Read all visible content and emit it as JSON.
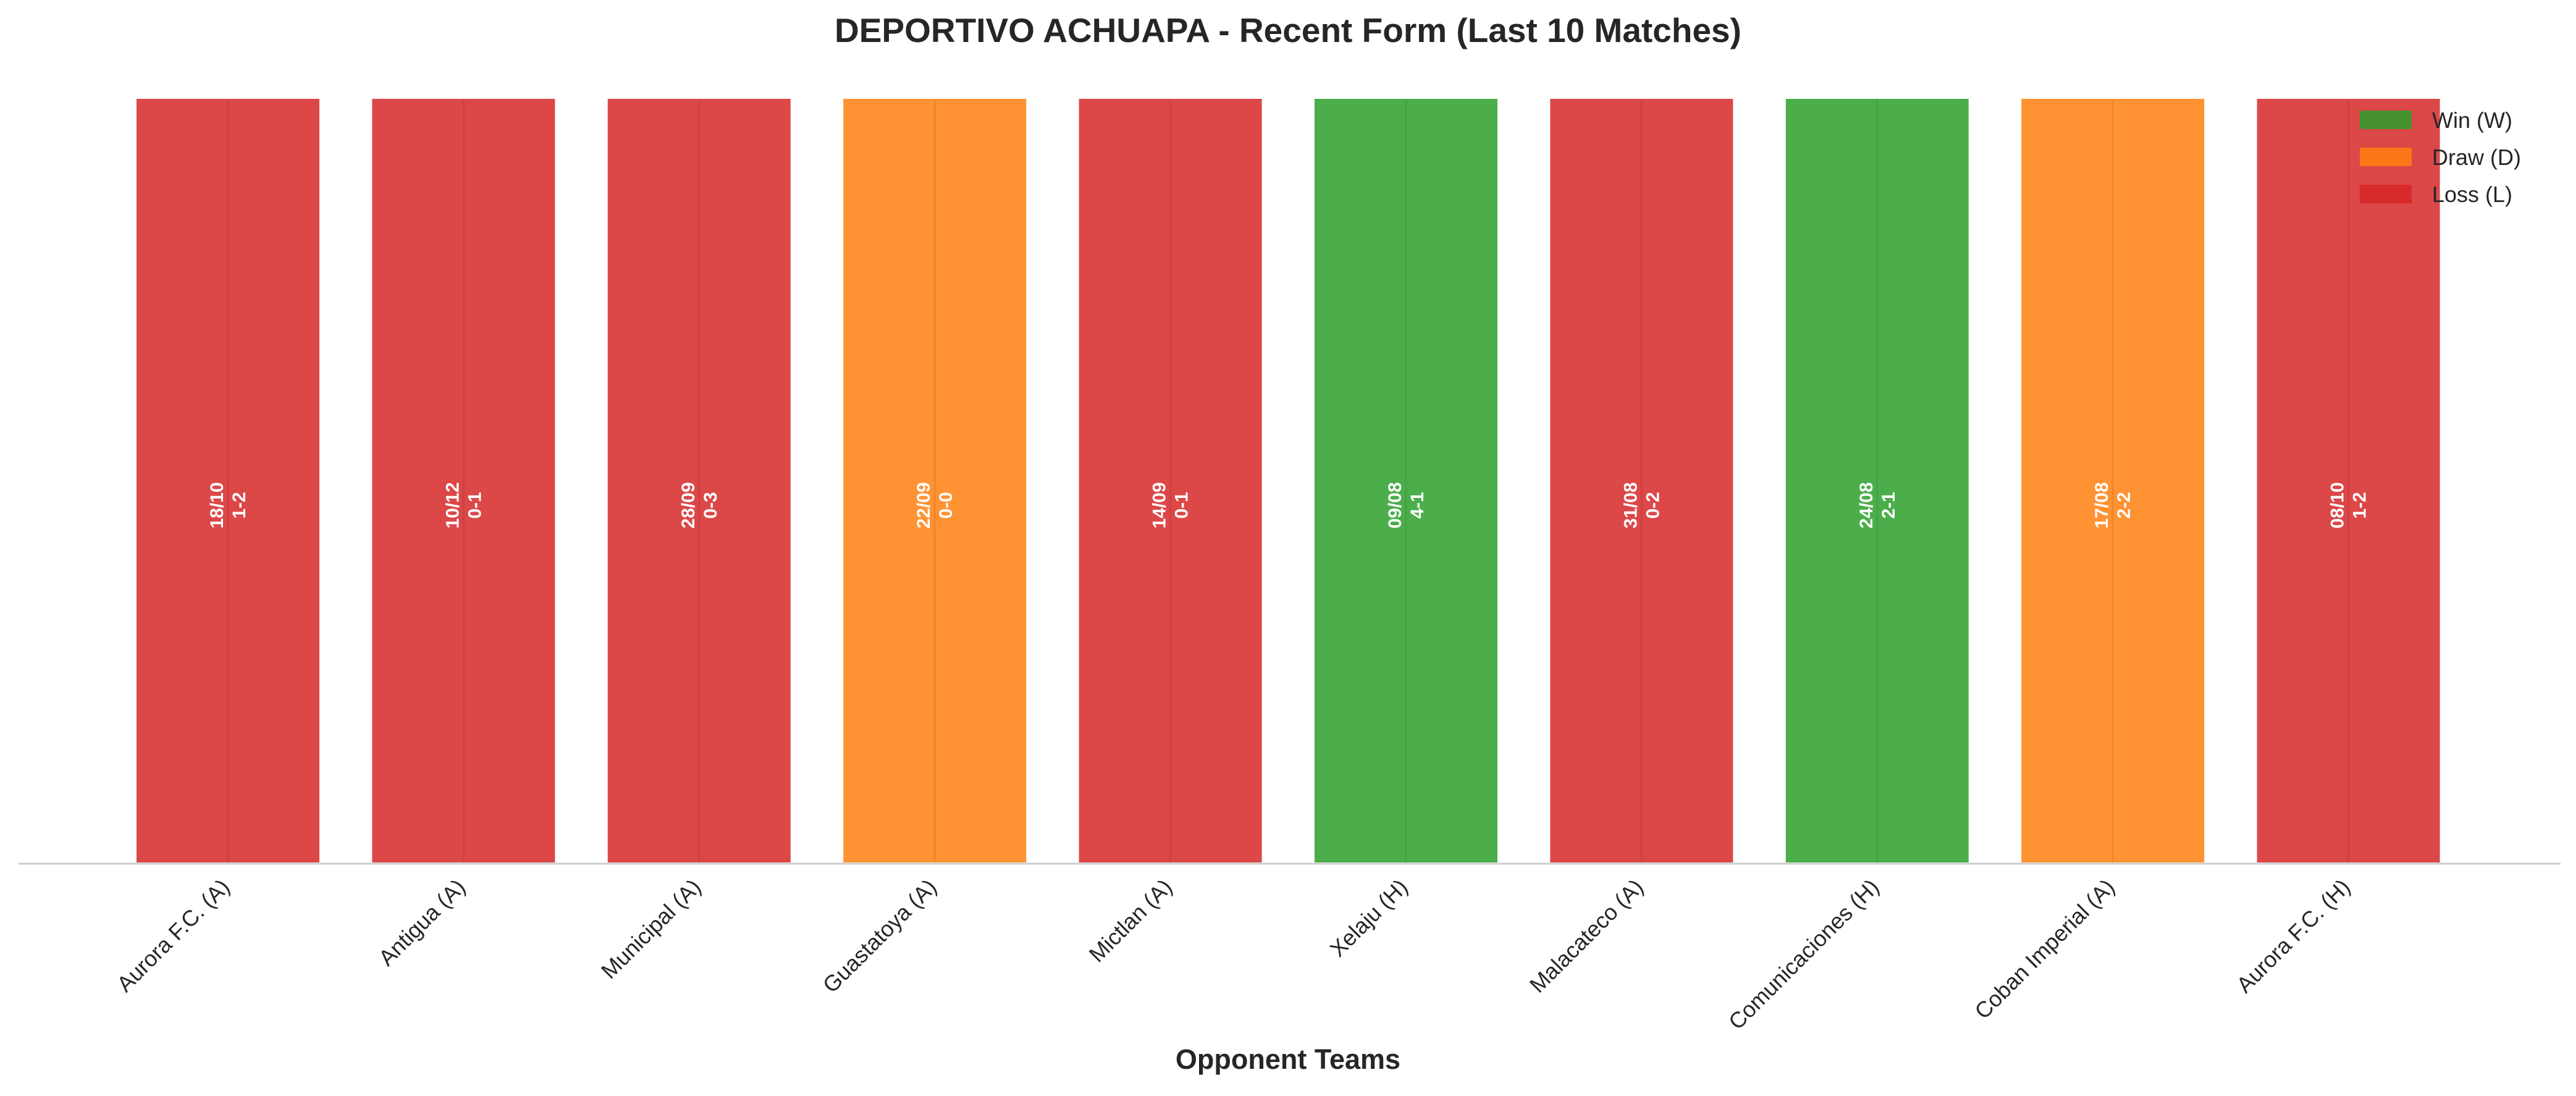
{
  "chart_data": {
    "type": "bar",
    "title": "DEPORTIVO ACHUAPA - Recent Form (Last 10 Matches)",
    "xlabel": "Opponent Teams",
    "ylabel": "",
    "grid": false,
    "legend_position": "top-right",
    "categories": [
      "Aurora F.C. (A)",
      "Antigua (A)",
      "Municipal (A)",
      "Guastatoya (A)",
      "Mictlan (A)",
      "Xelaju (H)",
      "Malacateco (A)",
      "Comunicaciones (H)",
      "Coban Imperial (A)",
      "Aurora F.C. (H)"
    ],
    "values": [
      1,
      1,
      1,
      1,
      1,
      1,
      1,
      1,
      1,
      1
    ],
    "results": [
      "L",
      "L",
      "L",
      "D",
      "L",
      "W",
      "L",
      "W",
      "D",
      "L"
    ],
    "dates": [
      "18/10",
      "10/12",
      "28/09",
      "22/09",
      "14/09",
      "09/08",
      "31/08",
      "24/08",
      "17/08",
      "08/10"
    ],
    "scores": [
      "1-2",
      "0-1",
      "0-3",
      "0-0",
      "0-1",
      "4-1",
      "0-2",
      "2-1",
      "2-2",
      "1-2"
    ],
    "legend": [
      {
        "key": "W",
        "label": "Win (W)",
        "color": "#2ca02c"
      },
      {
        "key": "D",
        "label": "Draw (D)",
        "color": "#ff7f0e"
      },
      {
        "key": "L",
        "label": "Loss (L)",
        "color": "#d62728"
      }
    ],
    "colors": {
      "W": "#2ca02c",
      "D": "#ff7f0e",
      "L": "#d62728"
    }
  }
}
